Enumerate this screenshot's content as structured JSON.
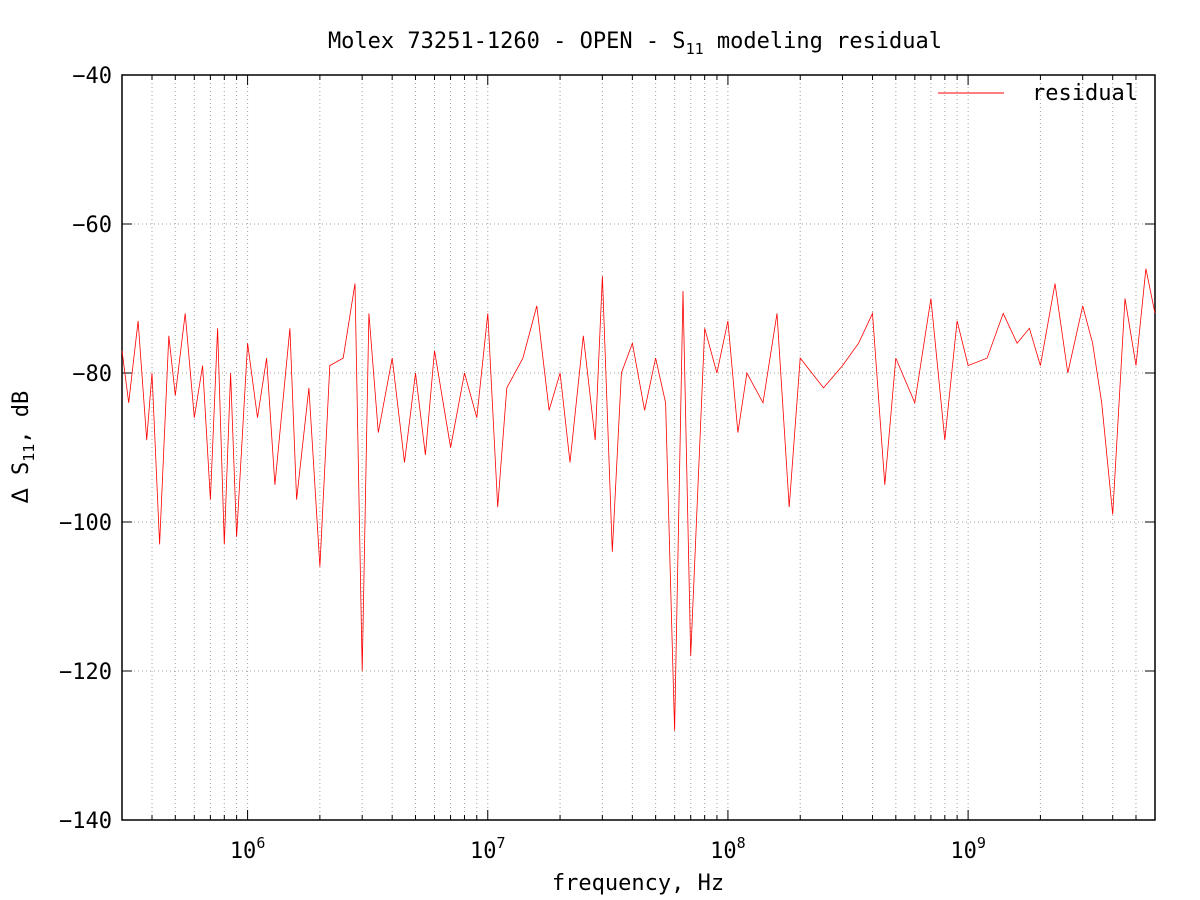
{
  "chart_data": {
    "type": "line",
    "title": {
      "main": "Molex 73251-1260 - OPEN - S",
      "sub": "11",
      "rest": " modeling residual"
    },
    "xlabel": "frequency, Hz",
    "ylabel": {
      "delta": "Δ",
      "main": " S",
      "sub": "11",
      "rest": ", dB"
    },
    "x_scale": "log",
    "xlim": [
      300000,
      6000000000
    ],
    "ylim": [
      -140,
      -40
    ],
    "grid": true,
    "legend": {
      "position": "top-right",
      "entries": [
        "residual"
      ]
    },
    "x_ticks": [
      {
        "base": "10",
        "exp": "6",
        "value": 1000000
      },
      {
        "base": "10",
        "exp": "7",
        "value": 10000000
      },
      {
        "base": "10",
        "exp": "8",
        "value": 100000000
      },
      {
        "base": "10",
        "exp": "9",
        "value": 1000000000
      }
    ],
    "y_ticks": [
      {
        "label": "−40",
        "value": -40
      },
      {
        "label": "−60",
        "value": -60
      },
      {
        "label": "−80",
        "value": -80
      },
      {
        "label": "−100",
        "value": -100
      },
      {
        "label": "−120",
        "value": -120
      },
      {
        "label": "−140",
        "value": -140
      }
    ],
    "series": [
      {
        "name": "residual",
        "color": "#ff0000",
        "x": [
          300000,
          320000,
          350000,
          380000,
          400000,
          430000,
          470000,
          500000,
          550000,
          600000,
          650000,
          700000,
          750000,
          800000,
          850000,
          900000,
          1000000,
          1100000,
          1200000,
          1300000,
          1500000,
          1600000,
          1800000,
          2000000,
          2200000,
          2500000,
          2800000,
          3000000,
          3200000,
          3500000,
          4000000,
          4500000,
          5000000,
          5500000,
          6000000,
          7000000,
          8000000,
          9000000,
          10000000,
          11000000,
          12000000,
          14000000,
          16000000,
          18000000,
          20000000,
          22000000,
          25000000,
          28000000,
          30000000,
          33000000,
          36000000,
          40000000,
          45000000,
          50000000,
          55000000,
          60000000,
          65000000,
          70000000,
          80000000,
          90000000,
          100000000,
          110000000,
          120000000,
          140000000,
          160000000,
          180000000,
          200000000,
          250000000,
          300000000,
          350000000,
          400000000,
          450000000,
          500000000,
          600000000,
          700000000,
          800000000,
          900000000,
          1000000000,
          1200000000,
          1400000000,
          1600000000,
          1800000000,
          2000000000,
          2300000000,
          2600000000,
          3000000000,
          3300000000,
          3600000000,
          4000000000,
          4500000000,
          5000000000,
          5500000000,
          6000000000
        ],
        "y": [
          -77,
          -84,
          -73,
          -89,
          -80,
          -103,
          -75,
          -83,
          -72,
          -86,
          -79,
          -97,
          -74,
          -103,
          -80,
          -102,
          -76,
          -86,
          -78,
          -95,
          -74,
          -97,
          -82,
          -106,
          -79,
          -78,
          -68,
          -120,
          -72,
          -88,
          -78,
          -92,
          -80,
          -91,
          -77,
          -90,
          -80,
          -86,
          -72,
          -98,
          -82,
          -78,
          -71,
          -85,
          -80,
          -92,
          -75,
          -89,
          -67,
          -104,
          -80,
          -76,
          -85,
          -78,
          -84,
          -128,
          -69,
          -118,
          -74,
          -80,
          -73,
          -88,
          -80,
          -84,
          -72,
          -98,
          -78,
          -82,
          -79,
          -76,
          -72,
          -95,
          -78,
          -84,
          -70,
          -89,
          -73,
          -79,
          -78,
          -72,
          -76,
          -74,
          -79,
          -68,
          -80,
          -71,
          -76,
          -84,
          -99,
          -70,
          -79,
          -66,
          -72
        ]
      }
    ]
  }
}
